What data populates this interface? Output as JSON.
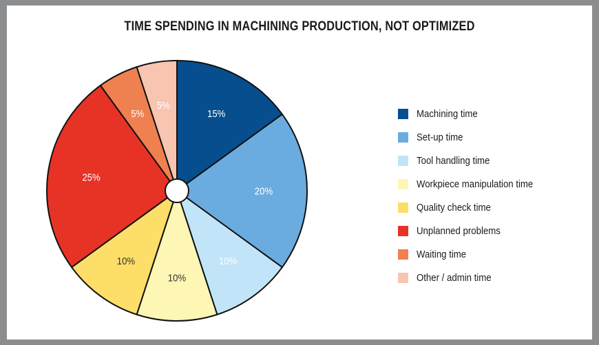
{
  "chart_data": {
    "type": "pie",
    "title": "TIME SPENDING IN MACHINING PRODUCTION, NOT OPTIMIZED",
    "legend_position": "right",
    "slices": [
      {
        "label": "Machining time",
        "value": 15,
        "display": "15%",
        "color": "#064e8e",
        "text_color": "#ffffff"
      },
      {
        "label": "Set-up time",
        "value": 20,
        "display": "20%",
        "color": "#6aacdf",
        "text_color": "#ffffff"
      },
      {
        "label": "Tool handling time",
        "value": 10,
        "display": "10%",
        "color": "#c1e4f8",
        "text_color": "#ffffff"
      },
      {
        "label": "Workpiece manipulation time",
        "value": 10,
        "display": "10%",
        "color": "#fdf6b4",
        "text_color": "#333333"
      },
      {
        "label": "Quality check time",
        "value": 10,
        "display": "10%",
        "color": "#fdde68",
        "text_color": "#333333"
      },
      {
        "label": "Unplanned problems",
        "value": 25,
        "display": "25%",
        "color": "#e63326",
        "text_color": "#ffffff"
      },
      {
        "label": "Waiting time",
        "value": 5,
        "display": "5%",
        "color": "#ef8150",
        "text_color": "#ffffff"
      },
      {
        "label": "Other / admin time",
        "value": 5,
        "display": "5%",
        "color": "#f8c5b1",
        "text_color": "#ffffff"
      }
    ]
  }
}
